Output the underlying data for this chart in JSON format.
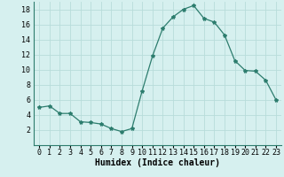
{
  "x": [
    0,
    1,
    2,
    3,
    4,
    5,
    6,
    7,
    8,
    9,
    10,
    11,
    12,
    13,
    14,
    15,
    16,
    17,
    18,
    19,
    20,
    21,
    22,
    23
  ],
  "y": [
    5,
    5.2,
    4.2,
    4.2,
    3.1,
    3.0,
    2.8,
    2.2,
    1.8,
    2.2,
    7.2,
    11.8,
    15.5,
    17.0,
    18.0,
    18.5,
    16.8,
    16.3,
    14.6,
    11.2,
    9.9,
    9.8,
    8.6,
    6.0
  ],
  "xlabel": "Humidex (Indice chaleur)",
  "ylabel": "",
  "xlim": [
    -0.5,
    23.5
  ],
  "ylim": [
    0,
    19
  ],
  "yticks": [
    2,
    4,
    6,
    8,
    10,
    12,
    14,
    16,
    18
  ],
  "xticks": [
    0,
    1,
    2,
    3,
    4,
    5,
    6,
    7,
    8,
    9,
    10,
    11,
    12,
    13,
    14,
    15,
    16,
    17,
    18,
    19,
    20,
    21,
    22,
    23
  ],
  "line_color": "#2d7d6e",
  "marker": "*",
  "bg_color": "#d6f0ef",
  "grid_color": "#b8dcda",
  "xlabel_fontsize": 7,
  "tick_fontsize": 6
}
